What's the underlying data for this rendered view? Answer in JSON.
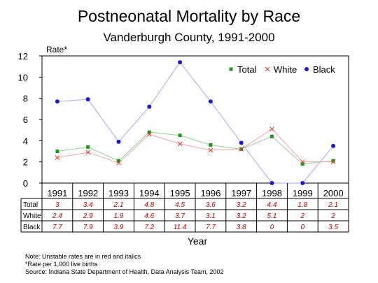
{
  "chart_data": {
    "type": "line",
    "title": "Postneonatal Mortality by Race",
    "subtitle": "Vanderburgh County, 1991-2000",
    "ylabel": "Rate*",
    "xlabel": "Year",
    "ylim": [
      0,
      12
    ],
    "yticks": [
      "0",
      "2",
      "4",
      "6",
      "8",
      "10",
      "12"
    ],
    "categories": [
      "1991",
      "1992",
      "1993",
      "1994",
      "1995",
      "1996",
      "1997",
      "1998",
      "1999",
      "2000"
    ],
    "legend_position": "top-right",
    "series": [
      {
        "name": "Total",
        "marker": "square",
        "color": "#1a9a1a",
        "line_color": "#9ad09a",
        "values": [
          3,
          3.4,
          2.1,
          4.8,
          4.5,
          3.6,
          3.2,
          4.4,
          1.8,
          2.1
        ]
      },
      {
        "name": "White",
        "marker": "x",
        "color": "#e53a2a",
        "line_color": "#f0a6a6",
        "values": [
          2.4,
          2.9,
          1.9,
          4.6,
          3.7,
          3.1,
          3.2,
          5.1,
          2,
          2
        ]
      },
      {
        "name": "Black",
        "marker": "circle",
        "color": "#1a1ad4",
        "line_color": "#a8a8f0",
        "values": [
          7.7,
          7.9,
          3.9,
          7.2,
          11.4,
          7.7,
          3.8,
          0,
          0,
          3.5
        ]
      }
    ],
    "table": {
      "rows": [
        {
          "label": "Total",
          "cells": [
            "3",
            "3.4",
            "2.1",
            "4.8",
            "4.5",
            "3.6",
            "3.2",
            "4.4",
            "1.8",
            "2.1"
          ]
        },
        {
          "label": "White",
          "cells": [
            "2.4",
            "2.9",
            "1.9",
            "4.6",
            "3.7",
            "3.1",
            "3.2",
            "5.1",
            "2",
            "2"
          ]
        },
        {
          "label": "Black",
          "cells": [
            "7.7",
            "7.9",
            "3.9",
            "7.2",
            "11.4",
            "7.7",
            "3.8",
            "0",
            "0",
            "3.5"
          ]
        }
      ],
      "cell_color": "#cc0000"
    }
  },
  "notes": [
    "Note:  Unstable rates are in red and italics",
    "*Rate per 1,000 live births",
    "Source:  Indiana State Department of Health, Data Analysis Team, 2002"
  ]
}
